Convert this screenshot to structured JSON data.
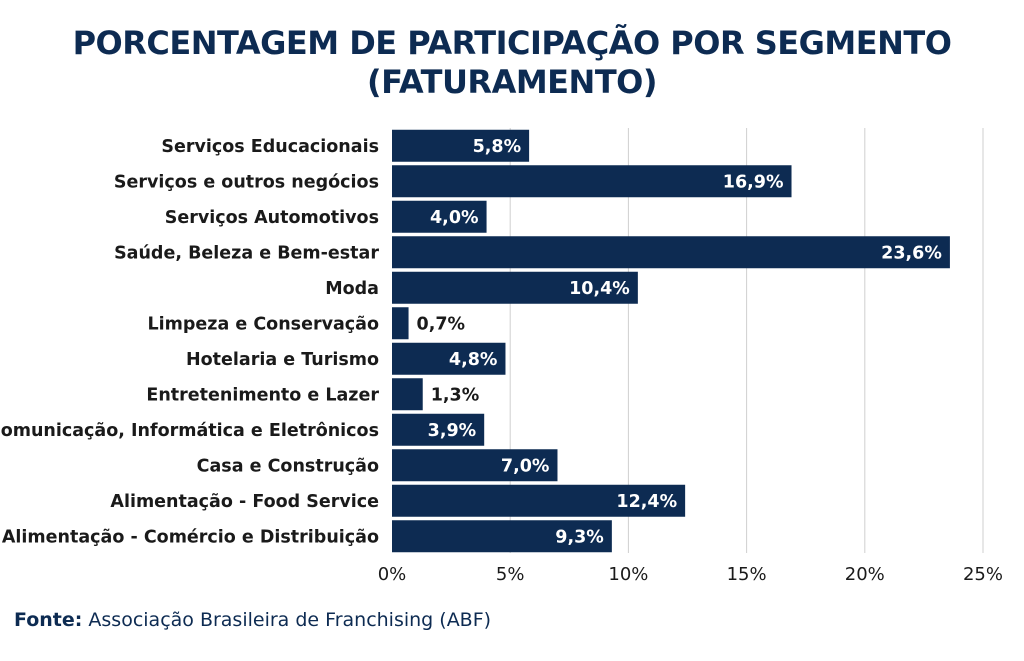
{
  "title": {
    "line1": "PORCENTAGEM DE PARTICIPAÇÃO POR SEGMENTO",
    "line2": "(FATURAMENTO)"
  },
  "source": {
    "label": "Fonte:",
    "text": "Associação Brasileira de Franchising (ABF)"
  },
  "colors": {
    "bar": "#0d2b52",
    "title": "#0d2b52",
    "text": "#1a1a1a",
    "grid": "#cfcfcf"
  },
  "chart_data": {
    "type": "bar",
    "orientation": "horizontal",
    "title": "PORCENTAGEM DE PARTICIPAÇÃO POR SEGMENTO (FATURAMENTO)",
    "xlabel": "",
    "ylabel": "",
    "xlim": [
      0,
      25
    ],
    "grid": true,
    "legend": "none",
    "categories": [
      "Serviços Educacionais",
      "Serviços e outros negócios",
      "Serviços Automotivos",
      "Saúde, Beleza e Bem-estar",
      "Moda",
      "Limpeza e Conservação",
      "Hotelaria e Turismo",
      "Entretenimento e Lazer",
      "Comunicação, Informática e Eletrônicos",
      "Casa e Construção",
      "Alimentação - Food Service",
      "Alimentação - Comércio e Distribuição"
    ],
    "values": [
      5.8,
      16.9,
      4.0,
      23.6,
      10.4,
      0.7,
      4.8,
      1.3,
      3.9,
      7.0,
      12.4,
      9.3
    ],
    "data_labels": [
      "5,8%",
      "16,9%",
      "4,0%",
      "23,6%",
      "10,4%",
      "0,7%",
      "4,8%",
      "1,3%",
      "3,9%",
      "7,0%",
      "12,4%",
      "9,3%"
    ],
    "ticks": [
      0,
      5,
      10,
      15,
      20,
      25
    ],
    "tick_labels": [
      "0%",
      "5%",
      "10%",
      "15%",
      "20%",
      "25%"
    ]
  }
}
